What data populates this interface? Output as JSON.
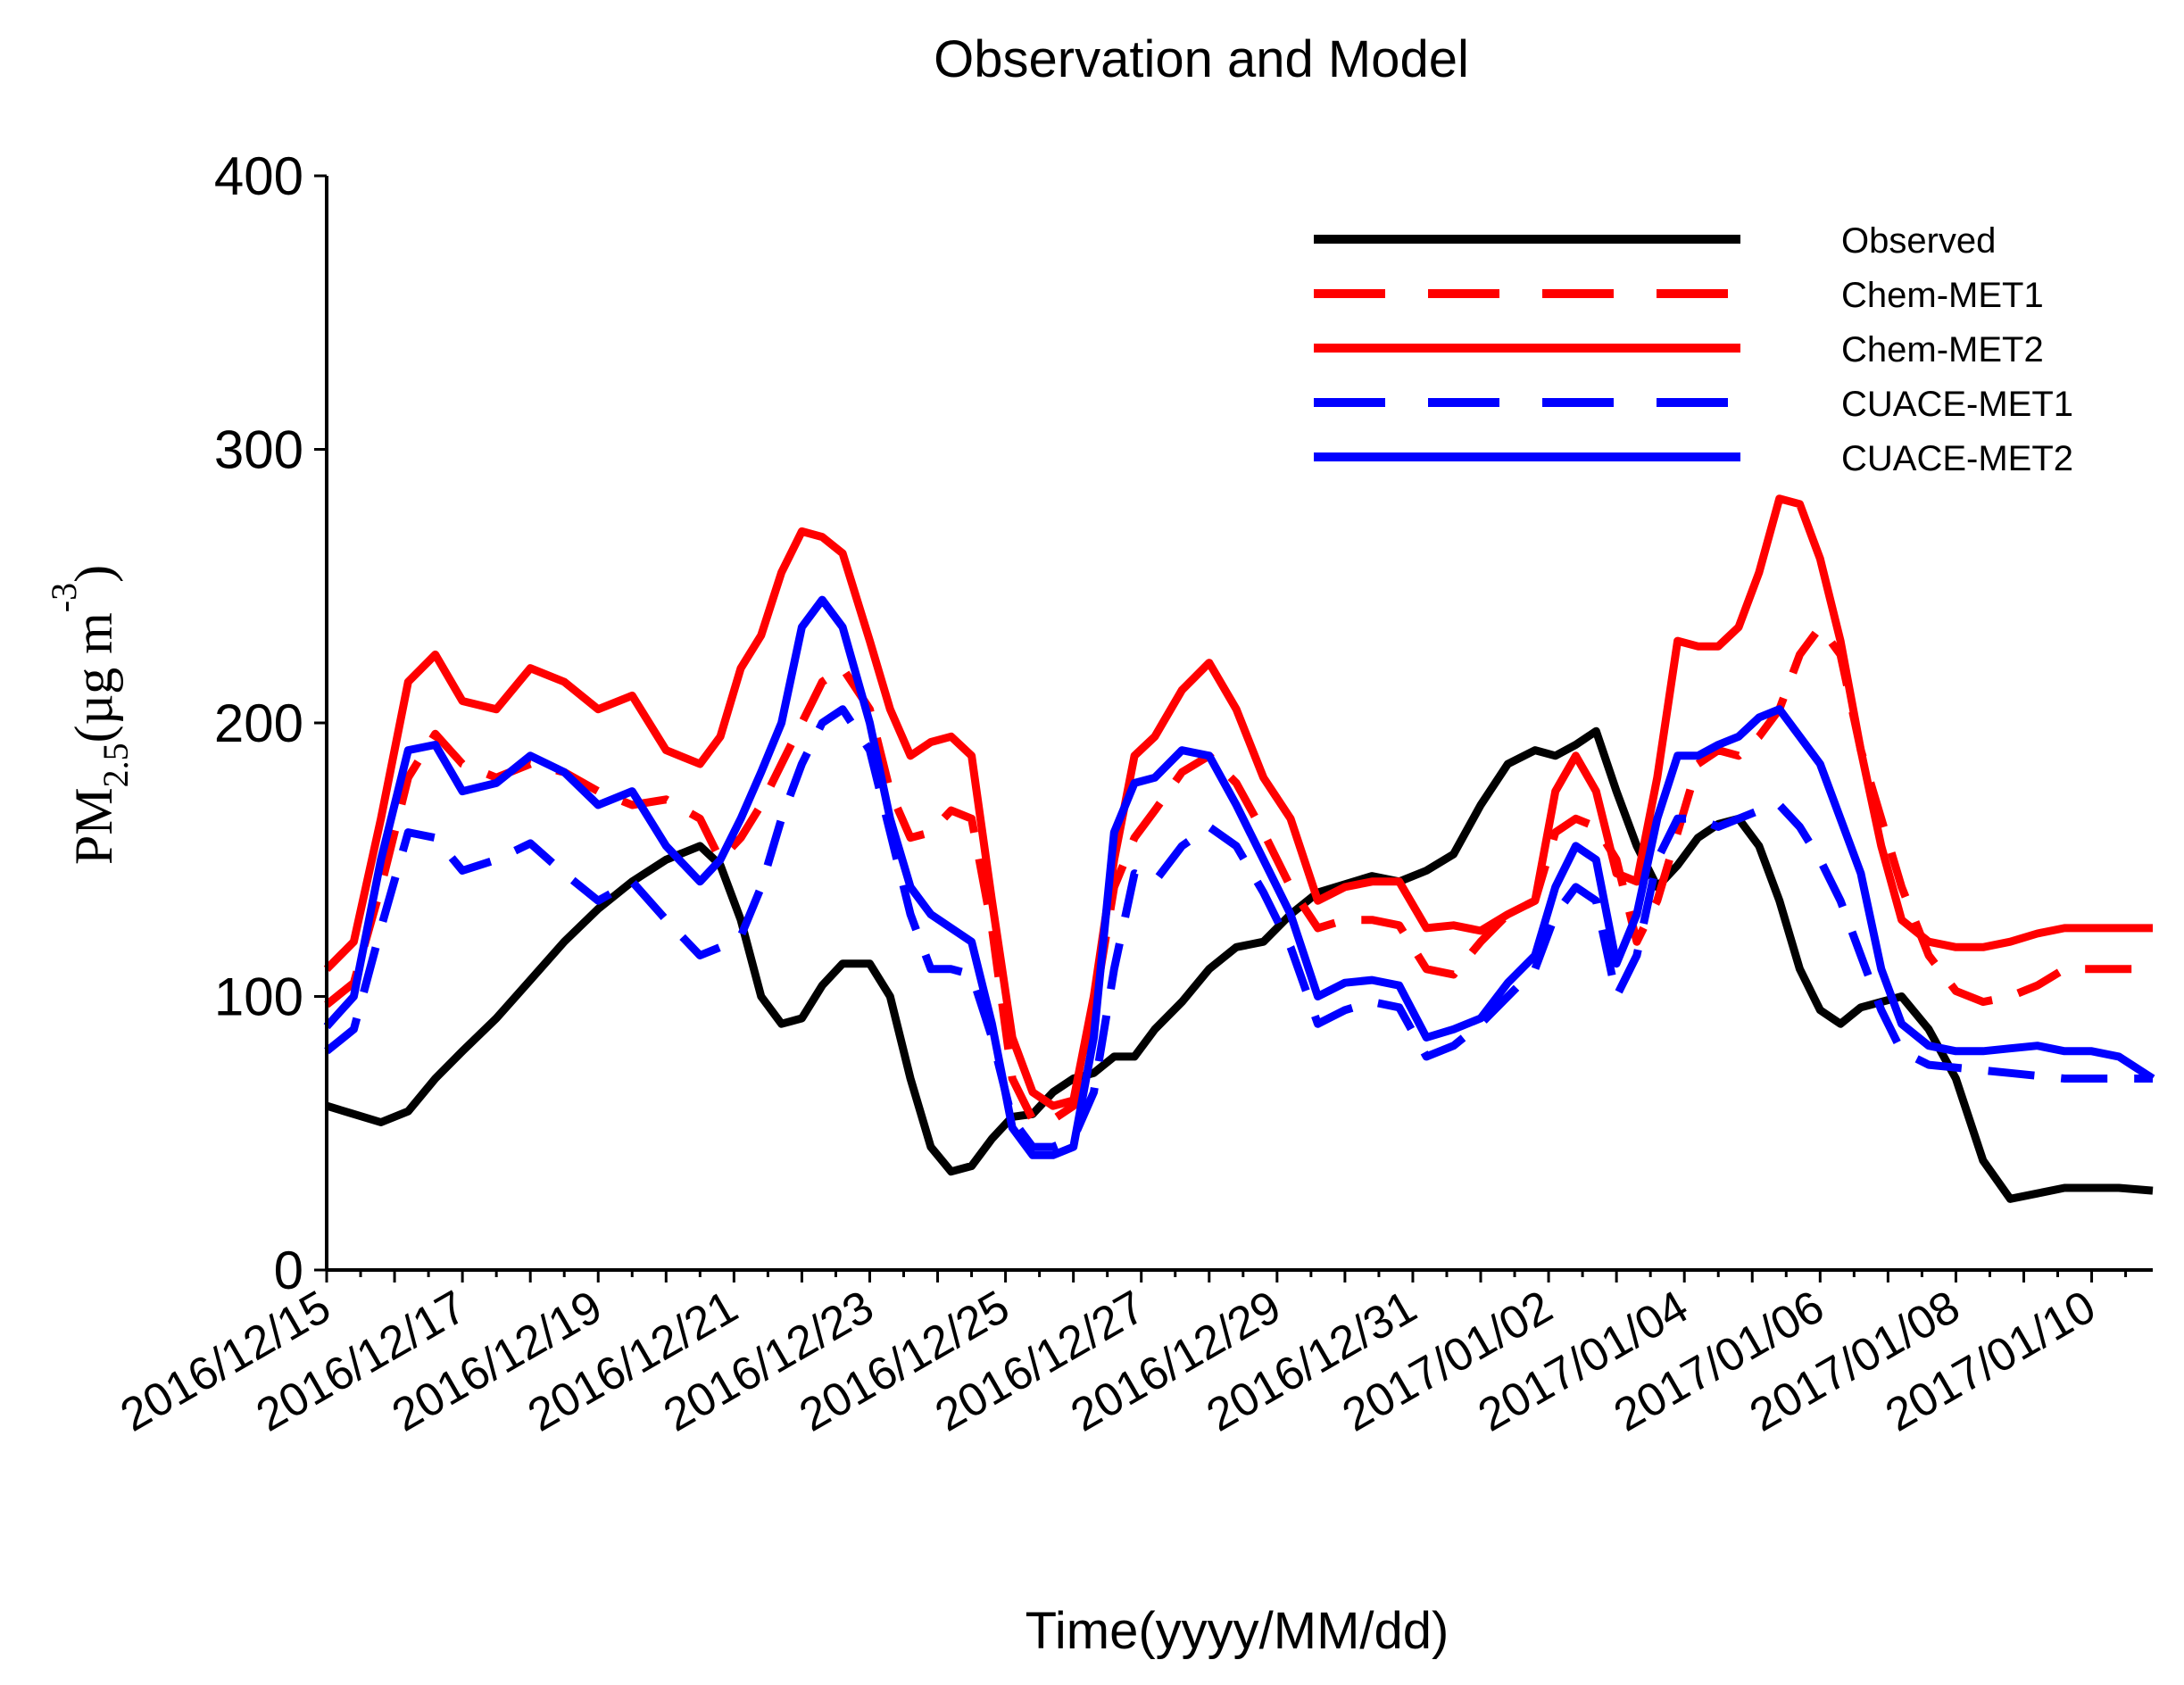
{
  "chart_data": {
    "type": "line",
    "title": "Observation and Model",
    "xlabel": "Time(yyyy/MM/dd)",
    "ylabel": {
      "base": "PM",
      "subscript": "2.5",
      "open": "(",
      "unit": "µg m",
      "superscript": "-3",
      "close": ")"
    },
    "xlim": [
      0,
      26.9
    ],
    "ylim": [
      0,
      400
    ],
    "yticks": [
      0,
      100,
      200,
      300,
      400
    ],
    "ytick_labels": [
      "0",
      "100",
      "200",
      "300",
      "400"
    ],
    "xtick_labels": [
      "2016/12/15",
      "2016/12/17",
      "2016/12/19",
      "2016/12/21",
      "2016/12/23",
      "2016/12/25",
      "2016/12/27",
      "2016/12/29",
      "2016/12/31",
      "2017/01/02",
      "2017/01/04",
      "2017/01/06",
      "2017/01/08",
      "2017/01/10"
    ],
    "xtick_label_days": [
      0,
      2,
      4,
      6,
      8,
      10,
      12,
      14,
      16,
      18,
      20,
      22,
      24,
      26
    ],
    "x_unit": "days since 2016/12/15",
    "legend_position": "top-right",
    "series": [
      {
        "name": "Observed",
        "color": "#000000",
        "dash": "solid",
        "x": [
          0,
          0.4,
          0.8,
          1.2,
          1.6,
          2.0,
          2.5,
          3.0,
          3.5,
          4.0,
          4.5,
          5.0,
          5.5,
          5.8,
          6.1,
          6.4,
          6.7,
          7.0,
          7.3,
          7.6,
          8.0,
          8.3,
          8.6,
          8.9,
          9.2,
          9.5,
          9.8,
          10.1,
          10.4,
          10.7,
          11.0,
          11.3,
          11.6,
          11.9,
          12.2,
          12.6,
          13.0,
          13.4,
          13.8,
          14.2,
          14.6,
          15.0,
          15.4,
          15.8,
          16.2,
          16.6,
          17.0,
          17.4,
          17.8,
          18.1,
          18.4,
          18.7,
          19.0,
          19.3,
          19.6,
          19.9,
          20.2,
          20.5,
          20.8,
          21.1,
          21.4,
          21.7,
          22.0,
          22.3,
          22.6,
          22.9,
          23.2,
          23.6,
          24.0,
          24.4,
          24.8,
          25.2,
          25.6,
          26.0,
          26.4,
          26.9
        ],
        "y": [
          60,
          57,
          54,
          58,
          70,
          80,
          92,
          106,
          120,
          132,
          142,
          150,
          155,
          148,
          128,
          100,
          90,
          92,
          104,
          112,
          112,
          100,
          70,
          45,
          36,
          38,
          48,
          56,
          57,
          65,
          70,
          72,
          78,
          78,
          88,
          98,
          110,
          118,
          120,
          130,
          138,
          141,
          144,
          142,
          146,
          152,
          170,
          185,
          190,
          188,
          192,
          197,
          175,
          155,
          140,
          148,
          158,
          163,
          165,
          155,
          135,
          110,
          95,
          90,
          96,
          98,
          100,
          88,
          70,
          40,
          26,
          28,
          30,
          30,
          30,
          29
        ]
      },
      {
        "name": "Chem-MET1",
        "color": "#ff0000",
        "dash": "dashed",
        "x": [
          0,
          0.4,
          0.8,
          1.2,
          1.6,
          2.0,
          2.5,
          3.0,
          3.5,
          4.0,
          4.5,
          5.0,
          5.5,
          5.8,
          6.1,
          6.4,
          6.7,
          7.0,
          7.3,
          7.6,
          8.0,
          8.3,
          8.6,
          8.9,
          9.2,
          9.5,
          9.8,
          10.1,
          10.4,
          10.7,
          11.0,
          11.3,
          11.6,
          11.9,
          12.2,
          12.6,
          13.0,
          13.4,
          13.8,
          14.2,
          14.6,
          15.0,
          15.4,
          15.8,
          16.2,
          16.6,
          17.0,
          17.4,
          17.8,
          18.1,
          18.4,
          18.7,
          19.0,
          19.3,
          19.6,
          19.9,
          20.2,
          20.5,
          20.8,
          21.1,
          21.4,
          21.7,
          22.0,
          22.3,
          22.6,
          22.9,
          23.2,
          23.6,
          24.0,
          24.4,
          24.8,
          25.2,
          25.6,
          26.0,
          26.4,
          26.9
        ],
        "y": [
          97,
          105,
          140,
          180,
          196,
          185,
          180,
          185,
          182,
          175,
          170,
          172,
          165,
          150,
          158,
          170,
          185,
          200,
          215,
          220,
          205,
          175,
          158,
          160,
          168,
          165,
          125,
          70,
          55,
          55,
          60,
          95,
          140,
          158,
          168,
          182,
          188,
          178,
          160,
          140,
          125,
          128,
          128,
          126,
          110,
          108,
          120,
          130,
          135,
          160,
          165,
          162,
          150,
          120,
          135,
          160,
          185,
          190,
          188,
          195,
          205,
          225,
          235,
          225,
          190,
          165,
          140,
          115,
          102,
          98,
          100,
          104,
          110,
          110,
          110,
          110
        ]
      },
      {
        "name": "Chem-MET2",
        "color": "#ff0000",
        "dash": "solid",
        "x": [
          0,
          0.4,
          0.8,
          1.2,
          1.6,
          2.0,
          2.5,
          3.0,
          3.5,
          4.0,
          4.5,
          5.0,
          5.5,
          5.8,
          6.1,
          6.4,
          6.7,
          7.0,
          7.3,
          7.6,
          8.0,
          8.3,
          8.6,
          8.9,
          9.2,
          9.5,
          9.8,
          10.1,
          10.4,
          10.7,
          11.0,
          11.3,
          11.6,
          11.9,
          12.2,
          12.6,
          13.0,
          13.4,
          13.8,
          14.2,
          14.6,
          15.0,
          15.4,
          15.8,
          16.2,
          16.6,
          17.0,
          17.4,
          17.8,
          18.1,
          18.4,
          18.7,
          19.0,
          19.3,
          19.6,
          19.9,
          20.2,
          20.5,
          20.8,
          21.1,
          21.4,
          21.7,
          22.0,
          22.3,
          22.6,
          22.9,
          23.2,
          23.6,
          24.0,
          24.4,
          24.8,
          25.2,
          25.6,
          26.0,
          26.4,
          26.9
        ],
        "y": [
          110,
          120,
          165,
          215,
          225,
          208,
          205,
          220,
          215,
          205,
          210,
          190,
          185,
          195,
          220,
          232,
          255,
          270,
          268,
          262,
          230,
          205,
          188,
          193,
          195,
          188,
          135,
          85,
          65,
          60,
          62,
          100,
          150,
          188,
          195,
          212,
          222,
          205,
          180,
          165,
          135,
          140,
          142,
          142,
          125,
          126,
          124,
          130,
          135,
          175,
          188,
          175,
          145,
          142,
          180,
          230,
          228,
          228,
          235,
          255,
          282,
          280,
          260,
          230,
          190,
          155,
          128,
          120,
          118,
          118,
          120,
          123,
          125,
          125,
          125,
          125
        ]
      },
      {
        "name": "CUACE-MET1",
        "color": "#0000ff",
        "dash": "dashed",
        "x": [
          0,
          0.4,
          0.8,
          1.2,
          1.6,
          2.0,
          2.5,
          3.0,
          3.5,
          4.0,
          4.5,
          5.0,
          5.5,
          5.8,
          6.1,
          6.4,
          6.7,
          7.0,
          7.3,
          7.6,
          8.0,
          8.3,
          8.6,
          8.9,
          9.2,
          9.5,
          9.8,
          10.1,
          10.4,
          10.7,
          11.0,
          11.3,
          11.6,
          11.9,
          12.2,
          12.6,
          13.0,
          13.4,
          13.8,
          14.2,
          14.6,
          15.0,
          15.4,
          15.8,
          16.2,
          16.6,
          17.0,
          17.4,
          17.8,
          18.1,
          18.4,
          18.7,
          19.0,
          19.3,
          19.6,
          19.9,
          20.2,
          20.5,
          20.8,
          21.1,
          21.4,
          21.7,
          22.0,
          22.3,
          22.6,
          22.9,
          23.2,
          23.6,
          24.0,
          24.4,
          24.8,
          25.2,
          25.6,
          26.0,
          26.4,
          26.9
        ],
        "y": [
          80,
          88,
          125,
          160,
          158,
          146,
          150,
          156,
          145,
          135,
          142,
          128,
          115,
          118,
          122,
          140,
          165,
          185,
          200,
          205,
          190,
          160,
          130,
          110,
          110,
          108,
          85,
          55,
          45,
          45,
          48,
          65,
          110,
          145,
          142,
          155,
          162,
          155,
          138,
          118,
          90,
          95,
          98,
          96,
          78,
          82,
          90,
          100,
          110,
          130,
          140,
          135,
          100,
          115,
          150,
          165,
          165,
          162,
          165,
          168,
          170,
          162,
          150,
          135,
          115,
          95,
          80,
          75,
          74,
          73,
          72,
          71,
          70,
          70,
          70,
          70
        ]
      },
      {
        "name": "CUACE-MET2",
        "color": "#0000ff",
        "dash": "solid",
        "x": [
          0,
          0.4,
          0.8,
          1.2,
          1.6,
          2.0,
          2.5,
          3.0,
          3.5,
          4.0,
          4.5,
          5.0,
          5.5,
          5.8,
          6.1,
          6.4,
          6.7,
          7.0,
          7.3,
          7.6,
          8.0,
          8.3,
          8.6,
          8.9,
          9.2,
          9.5,
          9.8,
          10.1,
          10.4,
          10.7,
          11.0,
          11.3,
          11.6,
          11.9,
          12.2,
          12.6,
          13.0,
          13.4,
          13.8,
          14.2,
          14.6,
          15.0,
          15.4,
          15.8,
          16.2,
          16.6,
          17.0,
          17.4,
          17.8,
          18.1,
          18.4,
          18.7,
          19.0,
          19.3,
          19.6,
          19.9,
          20.2,
          20.5,
          20.8,
          21.1,
          21.4,
          21.7,
          22.0,
          22.3,
          22.6,
          22.9,
          23.2,
          23.6,
          24.0,
          24.4,
          24.8,
          25.2,
          25.6,
          26.0,
          26.4,
          26.9
        ],
        "y": [
          89,
          100,
          150,
          190,
          192,
          175,
          178,
          188,
          182,
          170,
          175,
          155,
          142,
          150,
          165,
          182,
          200,
          235,
          245,
          235,
          200,
          165,
          140,
          130,
          125,
          120,
          90,
          52,
          42,
          42,
          45,
          85,
          160,
          178,
          180,
          190,
          188,
          170,
          150,
          130,
          100,
          105,
          106,
          104,
          85,
          88,
          92,
          105,
          115,
          140,
          155,
          150,
          112,
          130,
          165,
          188,
          188,
          192,
          195,
          202,
          205,
          195,
          185,
          165,
          145,
          110,
          90,
          82,
          80,
          80,
          81,
          82,
          80,
          80,
          78,
          70
        ]
      }
    ]
  }
}
